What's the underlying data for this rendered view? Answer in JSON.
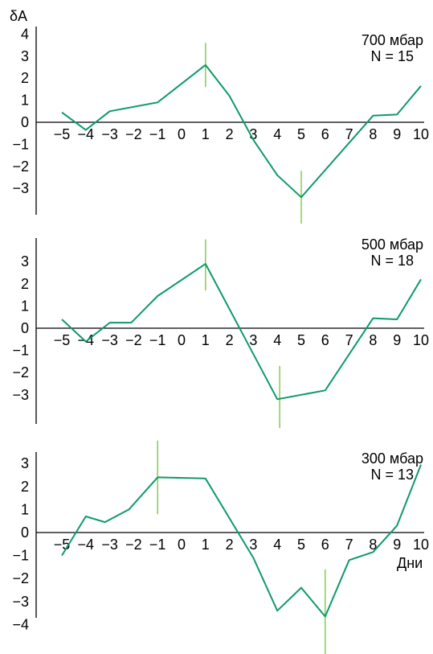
{
  "figure": {
    "ylabel": "δA",
    "xlabel": "Дни"
  },
  "chart_data": [
    {
      "type": "line",
      "pressure_label": "700 мбар",
      "n_label": "N = 15",
      "x": [
        -5,
        -4,
        -3,
        -1,
        1,
        2,
        3,
        4,
        5,
        8,
        9,
        10
      ],
      "y": [
        0.45,
        -0.35,
        0.5,
        0.9,
        2.6,
        1.2,
        -0.8,
        -2.4,
        -3.4,
        0.3,
        0.35,
        1.65
      ],
      "markers": [
        {
          "x": 1,
          "low": 1.6,
          "high": 3.6
        },
        {
          "x": 5,
          "low": -4.6,
          "high": -2.2
        }
      ],
      "xticks": [
        "−5",
        "−4",
        "−3",
        "−2",
        "−1",
        "0",
        "1",
        "2",
        "3",
        "4",
        "5",
        "6",
        "7",
        "8",
        "9",
        "10"
      ],
      "xtick_values": [
        -5,
        -4,
        -3,
        -2,
        -1,
        0,
        1,
        2,
        3,
        4,
        5,
        6,
        7,
        8,
        9,
        10
      ],
      "yticks": [
        "4",
        "3",
        "2",
        "1",
        "0",
        "−1",
        "−2",
        "−3"
      ],
      "ytick_values": [
        4,
        3,
        2,
        1,
        0,
        -1,
        -2,
        -3
      ],
      "ylim": [
        -4.5,
        4
      ],
      "color": "#0e9a6a",
      "marker_color": "#7ac943"
    },
    {
      "type": "line",
      "pressure_label": "500 мбар",
      "n_label": "N = 18",
      "x": [
        -5,
        -4,
        -3,
        -2.1,
        -1,
        1,
        4,
        6,
        8,
        9,
        10
      ],
      "y": [
        0.4,
        -0.6,
        0.25,
        0.25,
        1.45,
        2.9,
        -3.2,
        -2.8,
        0.45,
        0.4,
        2.2
      ],
      "markers": [
        {
          "x": 1,
          "low": 1.7,
          "high": 4.0
        },
        {
          "x": 4.1,
          "low": -4.5,
          "high": -1.7
        }
      ],
      "xticks": [
        "−5",
        "−4",
        "−3",
        "−2",
        "−1",
        "0",
        "1",
        "2",
        "3",
        "4",
        "5",
        "6",
        "7",
        "8",
        "9",
        "10"
      ],
      "xtick_values": [
        -5,
        -4,
        -3,
        -2,
        -1,
        0,
        1,
        2,
        3,
        4,
        5,
        6,
        7,
        8,
        9,
        10
      ],
      "yticks": [
        "3",
        "2",
        "1",
        "0",
        "−1",
        "−2",
        "−3"
      ],
      "ytick_values": [
        3,
        2,
        1,
        0,
        -1,
        -2,
        -3
      ],
      "ylim": [
        -4.3,
        4
      ],
      "color": "#0e9a6a",
      "marker_color": "#7ac943"
    },
    {
      "type": "line",
      "pressure_label": "300 мбар",
      "n_label": "N = 13",
      "x": [
        -5,
        -4,
        -3.2,
        -2.2,
        -1,
        1,
        3,
        4,
        5,
        6,
        7,
        8,
        9,
        10
      ],
      "y": [
        -1.0,
        0.7,
        0.45,
        1.0,
        2.4,
        2.35,
        -1.1,
        -3.4,
        -2.4,
        -3.65,
        -1.2,
        -0.85,
        0.3,
        2.95
      ],
      "markers": [
        {
          "x": -1,
          "low": 0.8,
          "high": 4.0
        },
        {
          "x": 6,
          "low": -5.7,
          "high": -1.6
        }
      ],
      "xticks": [
        "−5",
        "−4",
        "−3",
        "−2",
        "−1",
        "0",
        "1",
        "2",
        "3",
        "4",
        "5",
        "6",
        "7",
        "8",
        "9",
        "10"
      ],
      "xtick_values": [
        -5,
        -4,
        -3,
        -2,
        -1,
        0,
        1,
        2,
        3,
        4,
        5,
        6,
        7,
        8,
        9,
        10
      ],
      "yticks": [
        "3",
        "2",
        "1",
        "0",
        "−1",
        "−2",
        "−3",
        "−4"
      ],
      "ytick_values": [
        3,
        2,
        1,
        0,
        -1,
        -2,
        -3,
        -4
      ],
      "ylim": [
        -4.5,
        3.8
      ],
      "color": "#0e9a6a",
      "marker_color": "#7ac943"
    }
  ]
}
